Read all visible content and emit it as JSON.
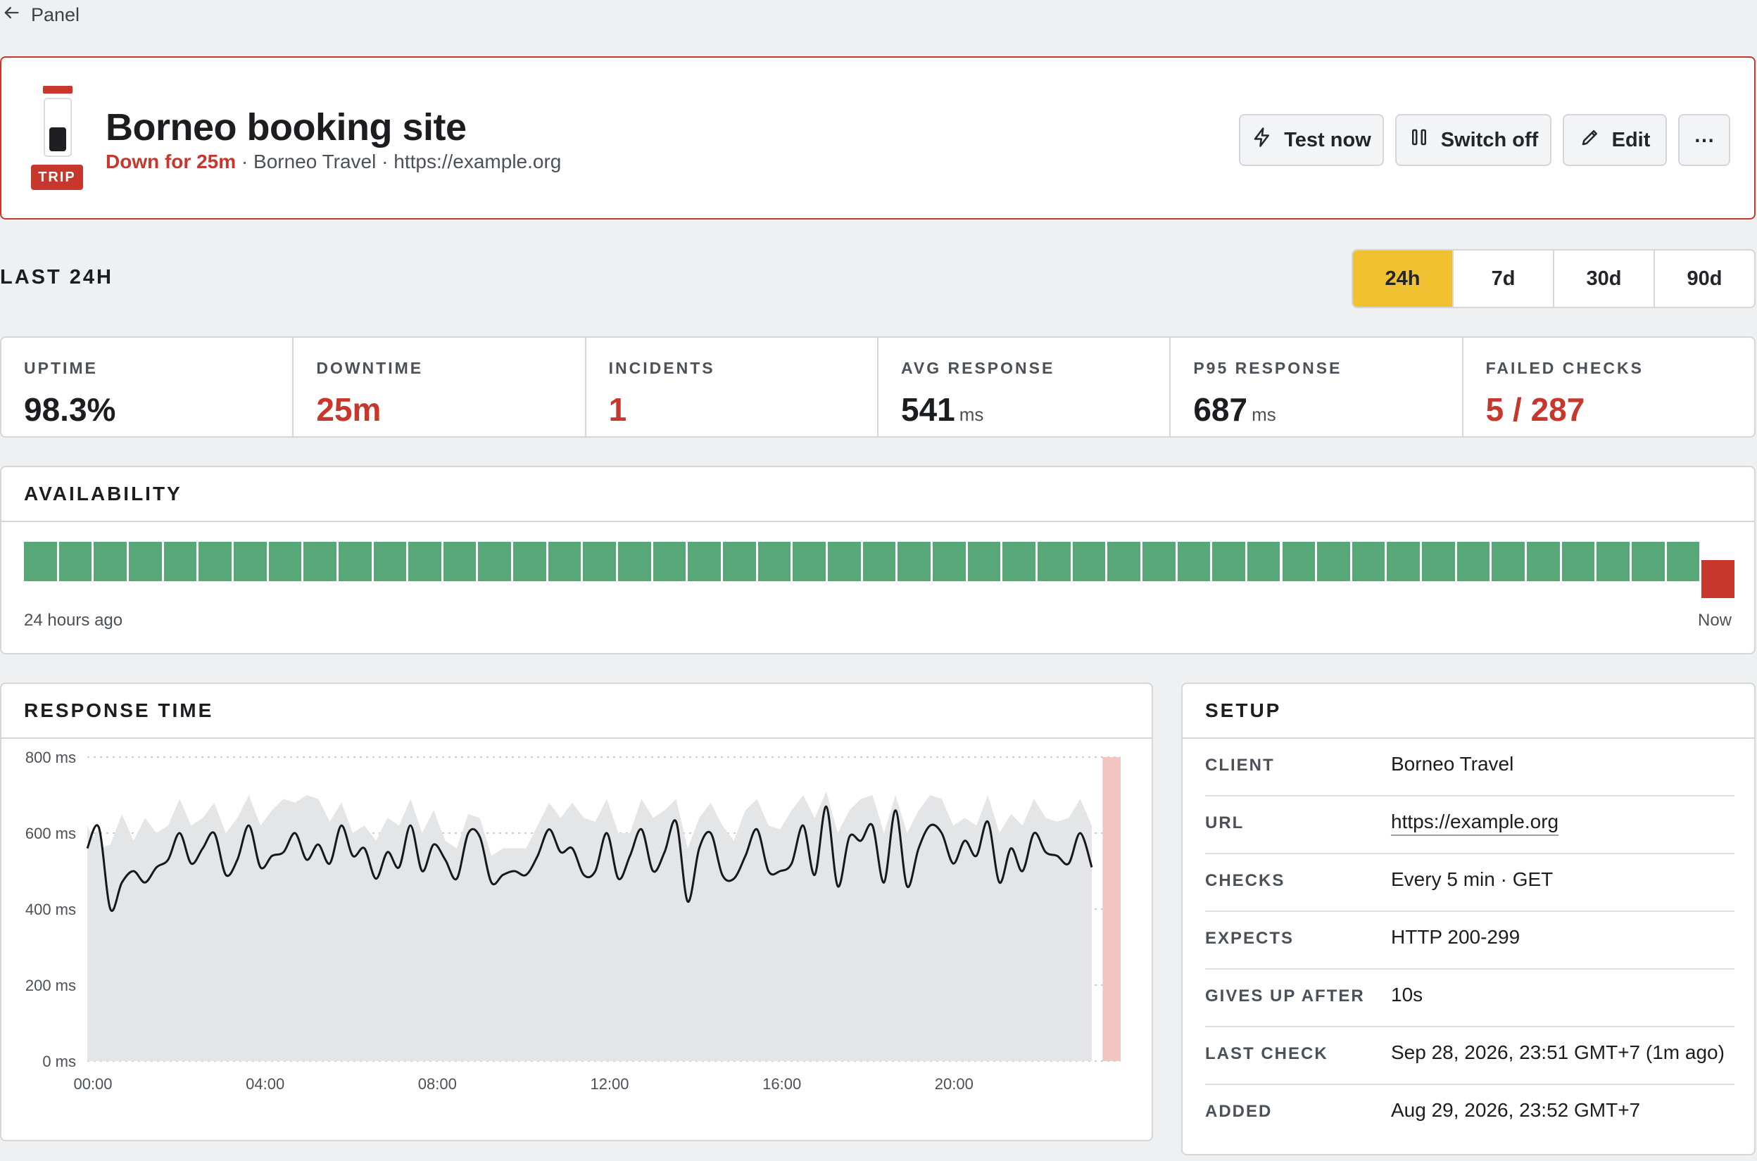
{
  "nav": {
    "back_label": "Panel"
  },
  "monitor": {
    "badge": "TRIP",
    "title": "Borneo booking site",
    "status": "Down for 25m",
    "sep1": " · ",
    "client": "Borneo Travel",
    "sep2": " · ",
    "url": "https://example.org"
  },
  "actions": {
    "test_now": "Test now",
    "switch_off": "Switch off",
    "edit": "Edit",
    "more": "⋯"
  },
  "period": {
    "title": "LAST 24H",
    "options": [
      "24h",
      "7d",
      "30d",
      "90d"
    ],
    "selected": "24h"
  },
  "stats": {
    "uptime": {
      "label": "UPTIME",
      "value": "98.3%"
    },
    "downtime": {
      "label": "DOWNTIME",
      "value": "25m"
    },
    "incidents": {
      "label": "INCIDENTS",
      "value": "1"
    },
    "avg_response": {
      "label": "AVG RESPONSE",
      "value": "541",
      "unit": "ms"
    },
    "p95_response": {
      "label": "P95 RESPONSE",
      "value": "687",
      "unit": "ms"
    },
    "failed_checks": {
      "label": "FAILED CHECKS",
      "value": "5 / 287"
    }
  },
  "availability": {
    "title": "AVAILABILITY",
    "start_label": "24 hours ago",
    "end_label": "Now",
    "segments": [
      "up",
      "up",
      "up",
      "up",
      "up",
      "up",
      "up",
      "up",
      "up",
      "up",
      "up",
      "up",
      "up",
      "up",
      "up",
      "up",
      "up",
      "up",
      "up",
      "up",
      "up",
      "up",
      "up",
      "up",
      "up",
      "up",
      "up",
      "up",
      "up",
      "up",
      "up",
      "up",
      "up",
      "up",
      "up",
      "up",
      "up",
      "up",
      "up",
      "up",
      "up",
      "up",
      "up",
      "up",
      "up",
      "up",
      "up",
      "up",
      "down"
    ],
    "colors": {
      "up": "#58a778",
      "down": "#c8372c"
    }
  },
  "response_time": {
    "title": "RESPONSE TIME",
    "chart_data": {
      "type": "line",
      "y_ticks": [
        "0 ms",
        "200 ms",
        "400 ms",
        "600 ms",
        "800 ms"
      ],
      "x_ticks": [
        "00:00",
        "04:00",
        "08:00",
        "12:00",
        "16:00",
        "20:00"
      ],
      "ylim": [
        0,
        800
      ],
      "xlim_hours": [
        0,
        24
      ],
      "downtime_hours": [
        23.58,
        24.0
      ],
      "series": [
        {
          "values": [
            560,
            615,
            400,
            470,
            500,
            470,
            510,
            530,
            600,
            520,
            560,
            600,
            490,
            530,
            620,
            510,
            540,
            550,
            600,
            530,
            570,
            520,
            620,
            540,
            560,
            480,
            550,
            510,
            620,
            500,
            570,
            530,
            480,
            600,
            590,
            470,
            490,
            500,
            490,
            540,
            610,
            550,
            560,
            490,
            500,
            600,
            480,
            540,
            610,
            500,
            550,
            630,
            420,
            560,
            600,
            490,
            480,
            540,
            610,
            500,
            500,
            520,
            620,
            490,
            670,
            460,
            590,
            580,
            620,
            470,
            660,
            460,
            560,
            620,
            600,
            520,
            580,
            540,
            630,
            470,
            560,
            500,
            600,
            550,
            540,
            520,
            600,
            510
          ]
        },
        {
          "values": [
            620,
            560,
            570,
            650,
            580,
            640,
            600,
            620,
            690,
            620,
            640,
            680,
            600,
            640,
            700,
            620,
            660,
            690,
            680,
            700,
            690,
            630,
            680,
            600,
            620,
            580,
            640,
            620,
            690,
            600,
            660,
            580,
            560,
            650,
            640,
            540,
            560,
            560,
            560,
            620,
            680,
            640,
            680,
            640,
            630,
            690,
            600,
            600,
            690,
            640,
            660,
            690,
            560,
            640,
            680,
            620,
            580,
            660,
            690,
            620,
            610,
            660,
            700,
            640,
            710,
            600,
            660,
            690,
            700,
            600,
            700,
            600,
            660,
            700,
            690,
            620,
            640,
            620,
            700,
            600,
            650,
            620,
            690,
            640,
            630,
            640,
            690,
            620
          ]
        }
      ]
    }
  },
  "setup": {
    "title": "SETUP",
    "rows": [
      {
        "key": "CLIENT",
        "value": "Borneo Travel"
      },
      {
        "key": "URL",
        "value": "https://example.org"
      },
      {
        "key": "CHECKS",
        "value": "Every 5 min · GET"
      },
      {
        "key": "EXPECTS",
        "value": "HTTP 200-299"
      },
      {
        "key": "GIVES UP AFTER",
        "value": "10s"
      },
      {
        "key": "LAST CHECK",
        "value": "Sep 28, 2026, 23:51 GMT+7 (1m ago)"
      },
      {
        "key": "ADDED",
        "value": "Aug 29, 2026, 23:52 GMT+7"
      }
    ]
  }
}
